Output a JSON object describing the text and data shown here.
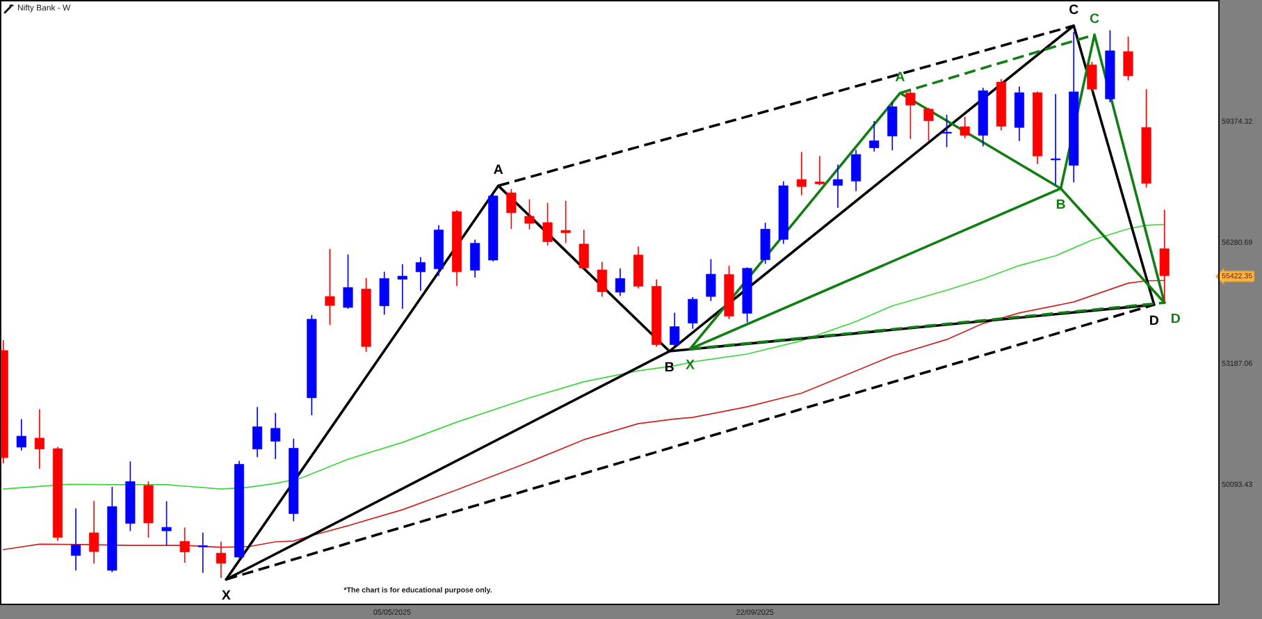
{
  "chart_data": {
    "type": "candlestick",
    "title": "Nifty Bank - W",
    "x": [
      "2024-12-06",
      "2024-12-13",
      "2024-12-20",
      "2024-12-27",
      "2025-01-03",
      "2025-01-10",
      "2025-01-17",
      "2025-01-24",
      "2025-01-31",
      "2025-02-07",
      "2025-02-14",
      "2025-02-21",
      "2025-02-28",
      "2025-03-07",
      "2025-03-14",
      "2025-03-21",
      "2025-03-28",
      "2025-04-04",
      "2025-04-11",
      "2025-04-18",
      "2025-04-25",
      "2025-05-02",
      "2025-05-09",
      "2025-05-16",
      "2025-05-23",
      "2025-05-30",
      "2025-06-06",
      "2025-06-13",
      "2025-06-20",
      "2025-06-27",
      "2025-07-04",
      "2025-07-11",
      "2025-07-18",
      "2025-07-25",
      "2025-08-01",
      "2025-08-08",
      "2025-08-15",
      "2025-08-22",
      "2025-08-29",
      "2025-09-05",
      "2025-09-12",
      "2025-09-19",
      "2025-09-26",
      "2025-10-03",
      "2025-10-10",
      "2025-10-17",
      "2025-10-24",
      "2025-10-31",
      "2025-11-07",
      "2025-11-14",
      "2025-11-21",
      "2025-11-28",
      "2025-12-05",
      "2025-12-12",
      "2025-12-19",
      "2025-12-26",
      "2026-01-02",
      "2026-01-09",
      "2026-01-16",
      "2026-01-23",
      "2026-01-30",
      "2026-02-06",
      "2026-02-13",
      "2026-02-20",
      "2026-02-27"
    ],
    "ohlc": [
      [
        53510,
        53760,
        50640,
        50770
      ],
      [
        51040,
        51740,
        50970,
        51320
      ],
      [
        51270,
        51990,
        50500,
        50990
      ],
      [
        51000,
        51030,
        48660,
        48730
      ],
      [
        48270,
        49460,
        47900,
        48540
      ],
      [
        48850,
        49650,
        48080,
        48370
      ],
      [
        47890,
        50010,
        47860,
        49520
      ],
      [
        49090,
        50660,
        48910,
        50160
      ],
      [
        50060,
        50150,
        48740,
        49100
      ],
      [
        48900,
        49640,
        48540,
        48990
      ],
      [
        48630,
        48970,
        48100,
        48360
      ],
      [
        48490,
        48840,
        47840,
        48520
      ],
      [
        48330,
        48610,
        47710,
        48070
      ],
      [
        48230,
        50670,
        48220,
        50600
      ],
      [
        50990,
        52050,
        50800,
        51560
      ],
      [
        51190,
        51900,
        50750,
        51520
      ],
      [
        49340,
        51240,
        49160,
        51010
      ],
      [
        52300,
        54400,
        51870,
        54310
      ],
      [
        54890,
        56090,
        54180,
        54660
      ],
      [
        54610,
        55950,
        54590,
        55120
      ],
      [
        55080,
        55350,
        53490,
        53610
      ],
      [
        54650,
        55510,
        54440,
        55350
      ],
      [
        55330,
        55700,
        54590,
        55410
      ],
      [
        55520,
        55880,
        55050,
        55760
      ],
      [
        55600,
        56700,
        55430,
        56590
      ],
      [
        57060,
        57080,
        55170,
        55520
      ],
      [
        55560,
        56330,
        55390,
        56250
      ],
      [
        55820,
        57520,
        55800,
        57460
      ],
      [
        57540,
        57620,
        56630,
        57030
      ],
      [
        56940,
        57360,
        56620,
        56760
      ],
      [
        56780,
        57270,
        56210,
        56290
      ],
      [
        56580,
        57320,
        56270,
        56520
      ],
      [
        56230,
        56580,
        55610,
        55620
      ],
      [
        55570,
        55760,
        54900,
        55010
      ],
      [
        55000,
        55590,
        54920,
        55350
      ],
      [
        55950,
        56150,
        55110,
        55150
      ],
      [
        55150,
        55310,
        53620,
        53660
      ],
      [
        53660,
        54460,
        53630,
        54120
      ],
      [
        54210,
        54860,
        54080,
        54820
      ],
      [
        54890,
        55830,
        54790,
        55460
      ],
      [
        55450,
        55660,
        54330,
        54390
      ],
      [
        54460,
        55620,
        54240,
        55610
      ],
      [
        55830,
        56760,
        55740,
        56610
      ],
      [
        56350,
        57820,
        56250,
        57720
      ],
      [
        57880,
        58570,
        57490,
        57700
      ],
      [
        57820,
        58460,
        57750,
        57770
      ],
      [
        57730,
        58250,
        57170,
        57880
      ],
      [
        57840,
        58620,
        57600,
        58520
      ],
      [
        58690,
        59360,
        58610,
        58870
      ],
      [
        58990,
        59840,
        58640,
        59740
      ],
      [
        60090,
        60140,
        58930,
        59780
      ],
      [
        59680,
        59700,
        58880,
        59380
      ],
      [
        59060,
        59520,
        58720,
        59090
      ],
      [
        59230,
        59470,
        58950,
        59010
      ],
      [
        59010,
        60210,
        58740,
        60150
      ],
      [
        60370,
        60430,
        59150,
        59240
      ],
      [
        59210,
        60240,
        58880,
        60100
      ],
      [
        60100,
        60110,
        58290,
        58480
      ],
      [
        58380,
        60050,
        57760,
        58410
      ],
      [
        58240,
        61640,
        57820,
        60120
      ],
      [
        60810,
        60870,
        60160,
        60190
      ],
      [
        59940,
        61680,
        59870,
        61170
      ],
      [
        61150,
        61520,
        60430,
        60530
      ],
      [
        59210,
        60170,
        57690,
        57780
      ],
      [
        56110,
        57090,
        54780,
        55422.35
      ]
    ],
    "colors": [
      "#ff0000",
      "#0000ff",
      "#ff0000",
      "#ff0000",
      "#0000ff",
      "#ff0000",
      "#0000ff",
      "#0000ff",
      "#ff0000",
      "#0000ff",
      "#ff0000",
      "#0000ff",
      "#ff0000",
      "#0000ff",
      "#0000ff",
      "#0000ff",
      "#0000ff",
      "#0000ff",
      "#ff0000",
      "#0000ff",
      "#ff0000",
      "#0000ff",
      "#0000ff",
      "#0000ff",
      "#0000ff",
      "#ff0000",
      "#0000ff",
      "#0000ff",
      "#ff0000",
      "#ff0000",
      "#ff0000",
      "#ff0000",
      "#ff0000",
      "#ff0000",
      "#0000ff",
      "#ff0000",
      "#ff0000",
      "#0000ff",
      "#0000ff",
      "#0000ff",
      "#ff0000",
      "#0000ff",
      "#0000ff",
      "#0000ff",
      "#ff0000",
      "#ff0000",
      "#0000ff",
      "#0000ff",
      "#0000ff",
      "#0000ff",
      "#ff0000",
      "#ff0000",
      "#0000ff",
      "#ff0000",
      "#0000ff",
      "#ff0000",
      "#0000ff",
      "#ff0000",
      "#0000ff",
      "#0000ff",
      "#ff0000",
      "#0000ff",
      "#ff0000",
      "#ff0000",
      "#ff0000"
    ],
    "series": [
      {
        "type": "line",
        "color": "#d01f1f",
        "x": [
          "2024-12-06",
          "2024-12-20",
          "2025-01-03",
          "2025-01-24",
          "2025-02-14",
          "2025-02-28",
          "2025-03-11",
          "2025-03-21",
          "2025-03-28",
          "2025-04-04",
          "2025-04-18",
          "2025-05-09",
          "2025-05-30",
          "2025-06-27",
          "2025-07-18",
          "2025-08-08",
          "2025-08-22",
          "2025-08-29",
          "2025-09-19",
          "2025-10-10",
          "2025-10-31",
          "2025-11-14",
          "2025-12-05",
          "2025-12-19",
          "2026-01-02",
          "2026-01-23",
          "2026-02-13",
          "2026-02-20",
          "2026-02-27"
        ],
        "values": [
          48420,
          48560,
          48550,
          48530,
          48530,
          48480,
          48500,
          48620,
          48640,
          48780,
          49030,
          49440,
          49950,
          50660,
          51230,
          51640,
          51760,
          51800,
          52070,
          52420,
          52990,
          53370,
          53790,
          54200,
          54470,
          54750,
          55230,
          55290,
          55300
        ]
      },
      {
        "type": "line",
        "color": "#3cd63c",
        "x": [
          "2024-12-06",
          "2024-12-31",
          "2025-01-20",
          "2025-02-07",
          "2025-02-28",
          "2025-03-10",
          "2025-03-21",
          "2025-03-31",
          "2025-04-18",
          "2025-05-09",
          "2025-05-30",
          "2025-06-27",
          "2025-07-18",
          "2025-08-08",
          "2025-08-22",
          "2025-08-29",
          "2025-09-19",
          "2025-10-10",
          "2025-10-31",
          "2025-11-14",
          "2025-12-05",
          "2025-12-19",
          "2026-01-02",
          "2026-01-16",
          "2026-01-30",
          "2026-02-13",
          "2026-02-20",
          "2026-02-27"
        ],
        "values": [
          49970,
          50090,
          50080,
          50080,
          49970,
          50010,
          50110,
          50250,
          50730,
          51160,
          51680,
          52300,
          52710,
          52990,
          53120,
          53220,
          53420,
          53760,
          54250,
          54650,
          55050,
          55340,
          55680,
          55930,
          56330,
          56620,
          56710,
          56730
        ]
      },
      {
        "type": "line",
        "color": "#000000",
        "line_style": "solid",
        "x": [
          "2025-03-02",
          "2025-06-15",
          "2025-08-20",
          "2026-01-23",
          "2026-02-23"
        ],
        "values": [
          47660,
          57720,
          53490,
          61810,
          54680
        ]
      },
      {
        "type": "line",
        "color": "#000000",
        "line_style": "solid",
        "x": [
          "2025-03-02",
          "2025-08-20",
          "2026-02-23"
        ],
        "values": [
          47660,
          53490,
          54680
        ]
      },
      {
        "type": "line",
        "color": "#000000",
        "line_style": "dashed",
        "x": [
          "2025-06-15",
          "2026-01-23"
        ],
        "values": [
          57720,
          61810
        ]
      },
      {
        "type": "line",
        "color": "#000000",
        "line_style": "dashed",
        "x": [
          "2025-03-02",
          "2026-02-23"
        ],
        "values": [
          47660,
          54680
        ]
      },
      {
        "type": "line",
        "color": "#127d12",
        "line_style": "solid",
        "x": [
          "2025-08-28",
          "2025-11-17",
          "2026-01-18",
          "2026-01-31",
          "2026-02-27"
        ],
        "values": [
          53550,
          60090,
          57650,
          61580,
          54730
        ]
      },
      {
        "type": "line",
        "color": "#127d12",
        "line_style": "solid",
        "x": [
          "2025-08-28",
          "2026-01-18",
          "2026-02-27"
        ],
        "values": [
          53550,
          57650,
          54730
        ]
      },
      {
        "type": "line",
        "color": "#127d12",
        "line_style": "dashed",
        "x": [
          "2025-11-17",
          "2026-01-31"
        ],
        "values": [
          60090,
          61580
        ]
      },
      {
        "type": "line",
        "color": "#127d12",
        "line_style": "dashed",
        "x": [
          "2025-08-28",
          "2026-02-27"
        ],
        "values": [
          53550,
          54730
        ]
      }
    ],
    "annotations": [
      {
        "text": "X",
        "x": "2025-03-02",
        "y": 47660
      },
      {
        "text": "A",
        "x": "2025-06-15",
        "y": 57720
      },
      {
        "text": "B",
        "x": "2025-08-20",
        "y": 53490
      },
      {
        "text": "C",
        "x": "2026-01-23",
        "y": 61810
      },
      {
        "text": "D",
        "x": "2026-02-23",
        "y": 54680
      },
      {
        "text": "X",
        "x": "2025-08-28",
        "y": 53550
      },
      {
        "text": "A",
        "x": "2025-11-17",
        "y": 60090
      },
      {
        "text": "B",
        "x": "2026-01-18",
        "y": 57650
      },
      {
        "text": "C",
        "x": "2026-01-31",
        "y": 61580
      },
      {
        "text": "D",
        "x": "2026-02-27",
        "y": 54730
      },
      "*The chart is for educational purpose only."
    ],
    "xlim": [
      "2024-12-05",
      "2026-03-20"
    ],
    "xticks": [
      {
        "value": "2025-05-05",
        "label": "05/05/2025"
      },
      {
        "value": "2025-09-22",
        "label": "22/09/2025"
      }
    ],
    "ylim": [
      47020,
      62450
    ],
    "yticks": [
      50093.43,
      53187.06,
      55422.35,
      56280.69,
      59374.32
    ]
  }
}
